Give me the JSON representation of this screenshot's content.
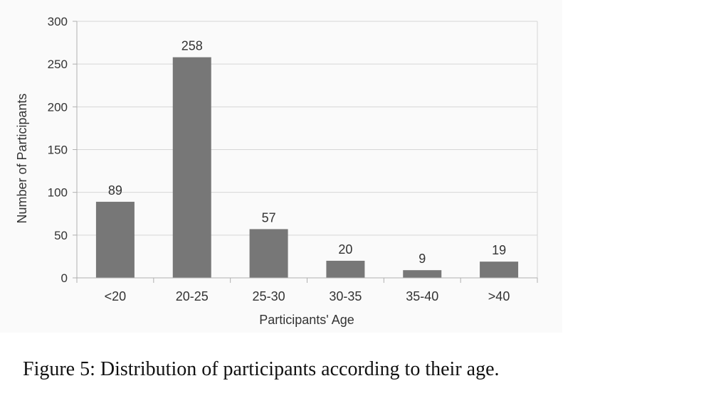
{
  "chart_data": {
    "type": "bar",
    "categories": [
      "<20",
      "20-25",
      "25-30",
      "30-35",
      "35-40",
      ">40"
    ],
    "values": [
      89,
      258,
      57,
      20,
      9,
      19
    ],
    "data_labels": [
      "89",
      "258",
      "57",
      "20",
      "9",
      "19"
    ],
    "xlabel": "Participants' Age",
    "ylabel": "Number of Participants",
    "ylim": [
      0,
      300
    ],
    "yticks": [
      0,
      50,
      100,
      150,
      200,
      250,
      300
    ],
    "grid": true,
    "bar_color": "#777777"
  },
  "caption": "Figure 5: Distribution of participants according to their age."
}
